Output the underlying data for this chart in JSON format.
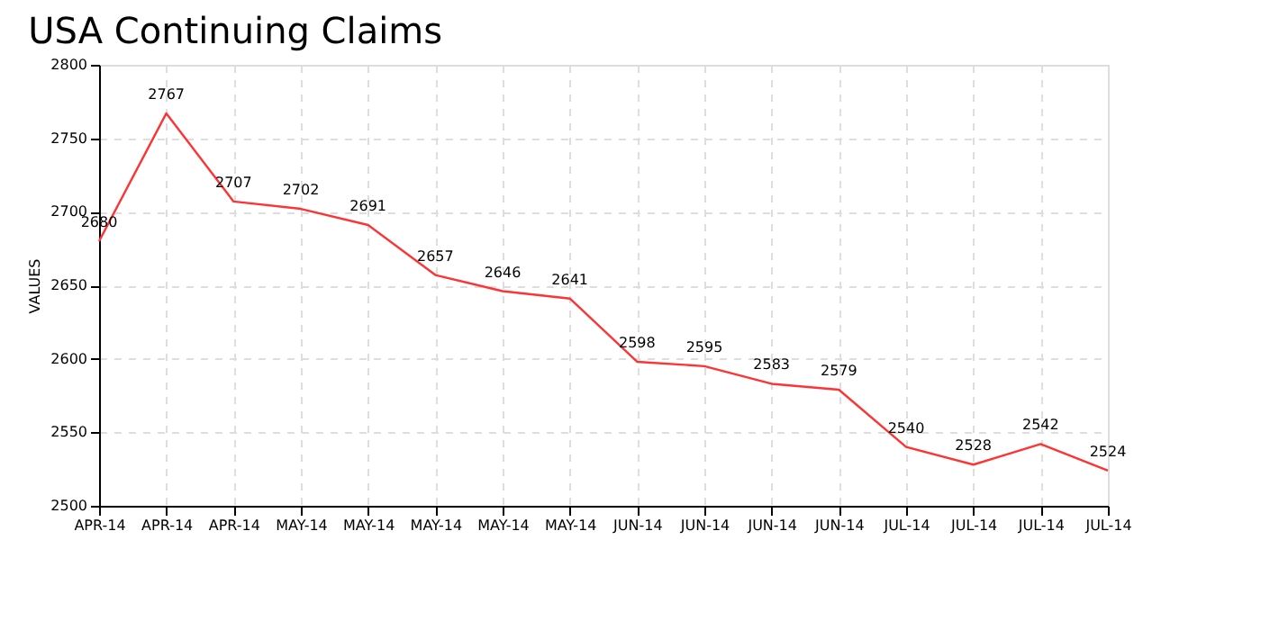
{
  "chart_data": {
    "type": "line",
    "title": "USA Continuing Claims",
    "ylabel": "VALUES",
    "categories": [
      "APR-14",
      "APR-14",
      "APR-14",
      "MAY-14",
      "MAY-14",
      "MAY-14",
      "MAY-14",
      "MAY-14",
      "JUN-14",
      "JUN-14",
      "JUN-14",
      "JUN-14",
      "JUL-14",
      "JUL-14",
      "JUL-14",
      "JUL-14"
    ],
    "series": [
      {
        "color": "#ff3333",
        "values": [
          2680,
          2767,
          2707,
          2702,
          2691,
          2657,
          2646,
          2641,
          2598,
          2595,
          2583,
          2579,
          2540,
          2528,
          2542,
          2524
        ]
      }
    ],
    "ylim": [
      2500,
      2800
    ],
    "yticks": [
      2500,
      2550,
      2600,
      2650,
      2700,
      2750,
      2800
    ],
    "grid": true,
    "data_labels": true,
    "marker": "none",
    "line_style": "solid"
  }
}
